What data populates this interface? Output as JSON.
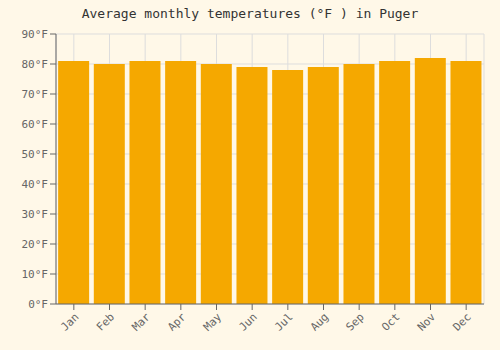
{
  "chart_data": {
    "type": "bar",
    "title": "Average monthly temperatures (°F ) in Puger",
    "categories": [
      "Jan",
      "Feb",
      "Mar",
      "Apr",
      "May",
      "Jun",
      "Jul",
      "Aug",
      "Sep",
      "Oct",
      "Nov",
      "Dec"
    ],
    "values": [
      81,
      80,
      81,
      81,
      80,
      79,
      78,
      79,
      80,
      81,
      82,
      81
    ],
    "color": "#F5A800",
    "ylim": [
      0,
      90
    ],
    "yticks": [
      {
        "value": 0,
        "label": "0°F"
      },
      {
        "value": 10,
        "label": "10°F"
      },
      {
        "value": 20,
        "label": "20°F"
      },
      {
        "value": 30,
        "label": "30°F"
      },
      {
        "value": 40,
        "label": "40°F"
      },
      {
        "value": 50,
        "label": "50°F"
      },
      {
        "value": 60,
        "label": "60°F"
      },
      {
        "value": 70,
        "label": "70°F"
      },
      {
        "value": 80,
        "label": "80°F"
      },
      {
        "value": 90,
        "label": "90°F"
      }
    ],
    "grid": true
  }
}
